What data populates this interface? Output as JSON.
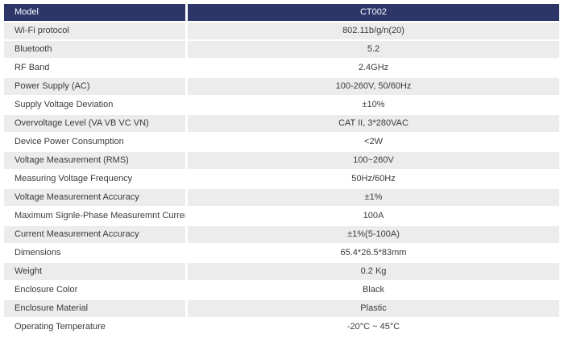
{
  "header": {
    "label": "Model",
    "value": "CT002"
  },
  "rows": [
    {
      "label": "Wi-Fi protocol",
      "value": "802.11b/g/n(20)"
    },
    {
      "label": "Bluetooth",
      "value": "5.2"
    },
    {
      "label": "RF Band",
      "value": "2.4GHz"
    },
    {
      "label": "Power Supply (AC)",
      "value": "100-260V, 50/60Hz"
    },
    {
      "label": "Supply Voltage Deviation",
      "value": "±10%"
    },
    {
      "label": "Overvoltage Level (VA VB VC VN)",
      "value": "CAT II, 3*280VAC"
    },
    {
      "label": "Device Power Consumption",
      "value": "<2W"
    },
    {
      "label": "Voltage Measurement (RMS)",
      "value": "100~260V"
    },
    {
      "label": "Measuring Voltage Frequency",
      "value": "50Hz/60Hz"
    },
    {
      "label": "Voltage Measurement Accuracy",
      "value": "±1%"
    },
    {
      "label": "Maximum Signle-Phase Measuremnt Current",
      "value": "100A"
    },
    {
      "label": "Current Measurement Accuracy",
      "value": "±1%(5-100A)"
    },
    {
      "label": "Dimensions",
      "value": "65.4*26.5*83mm"
    },
    {
      "label": "Weight",
      "value": "0.2 Kg"
    },
    {
      "label": "Enclosure Color",
      "value": "Black"
    },
    {
      "label": "Enclosure Material",
      "value": "Plastic"
    },
    {
      "label": "Operating Temperature",
      "value": "-20°C ~ 45°C"
    }
  ],
  "colors": {
    "header_background": "#2c3669",
    "header_text": "#ffffff",
    "shaded_row": "#ececec",
    "plain_row": "#ffffff",
    "body_text": "#3a3a3a"
  }
}
